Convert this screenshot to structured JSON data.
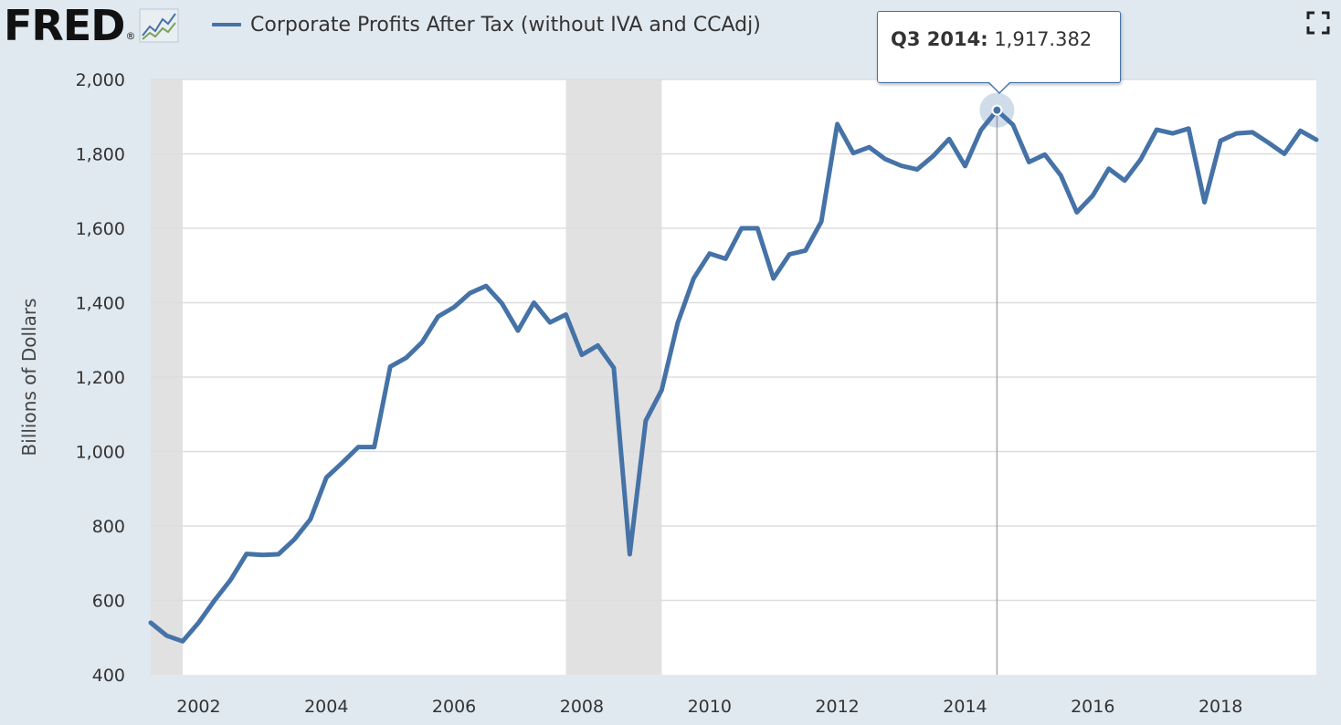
{
  "header": {
    "logo_text": "FRED",
    "logo_reg": "®",
    "logo_icon": "line-chart-icon",
    "fullscreen_icon": "fullscreen-icon"
  },
  "colors": {
    "series": "#4572a7",
    "recession": "#e1e1e1",
    "background": "#e1e9f0",
    "plot_background": "#ffffff",
    "grid": "#dddddd"
  },
  "tooltip": {
    "period": "Q3 2014:",
    "value": "1,917.382",
    "x": 2014.5,
    "y": 1917.382
  },
  "chart_data": {
    "type": "line",
    "title": "",
    "xlabel": "",
    "ylabel": "Billions of Dollars",
    "xlim": [
      2001.25,
      2019.5
    ],
    "ylim": [
      400,
      2000
    ],
    "grid": true,
    "legend": "top-left",
    "yticks": [
      400,
      600,
      800,
      1000,
      1200,
      1400,
      1600,
      1800,
      2000
    ],
    "ytick_labels": [
      "400",
      "600",
      "800",
      "1,000",
      "1,200",
      "1,400",
      "1,600",
      "1,800",
      "2,000"
    ],
    "xticks": [
      2002,
      2004,
      2006,
      2008,
      2010,
      2012,
      2014,
      2016,
      2018
    ],
    "xtick_labels": [
      "2002",
      "2004",
      "2006",
      "2008",
      "2010",
      "2012",
      "2014",
      "2016",
      "2018"
    ],
    "recessions": [
      [
        2001.25,
        2001.75
      ],
      [
        2007.75,
        2009.25
      ]
    ],
    "series": [
      {
        "name": "Corporate Profits After Tax (without IVA and CCAdj)",
        "x": [
          2001.25,
          2001.5,
          2001.75,
          2002.0,
          2002.25,
          2002.5,
          2002.75,
          2003.0,
          2003.25,
          2003.5,
          2003.75,
          2004.0,
          2004.25,
          2004.5,
          2004.75,
          2005.0,
          2005.25,
          2005.5,
          2005.75,
          2006.0,
          2006.25,
          2006.5,
          2006.75,
          2007.0,
          2007.25,
          2007.5,
          2007.75,
          2008.0,
          2008.25,
          2008.5,
          2008.75,
          2009.0,
          2009.25,
          2009.5,
          2009.75,
          2010.0,
          2010.25,
          2010.5,
          2010.75,
          2011.0,
          2011.25,
          2011.5,
          2011.75,
          2012.0,
          2012.25,
          2012.5,
          2012.75,
          2013.0,
          2013.25,
          2013.5,
          2013.75,
          2014.0,
          2014.25,
          2014.5,
          2014.75,
          2015.0,
          2015.25,
          2015.5,
          2015.75,
          2016.0,
          2016.25,
          2016.5,
          2016.75,
          2017.0,
          2017.25,
          2017.5,
          2017.75,
          2018.0,
          2018.25,
          2018.5,
          2018.75,
          2019.0,
          2019.25,
          2019.5
        ],
        "values": [
          540,
          505,
          490,
          540,
          600,
          655,
          725,
          722,
          724,
          764,
          818,
          930,
          970,
          1012,
          1012,
          1228,
          1252,
          1294,
          1363,
          1388,
          1426,
          1445,
          1398,
          1325,
          1400,
          1347,
          1368,
          1260,
          1285,
          1225,
          724,
          1083,
          1165,
          1345,
          1465,
          1532,
          1518,
          1600,
          1600,
          1465,
          1530,
          1540,
          1618,
          1880,
          1802,
          1818,
          1786,
          1768,
          1758,
          1794,
          1840,
          1767,
          1864,
          1917,
          1878,
          1778,
          1798,
          1742,
          1643,
          1688,
          1760,
          1728,
          1785,
          1865,
          1855,
          1868,
          1670,
          1835,
          1855,
          1858,
          1830,
          1800,
          1862,
          1838
        ]
      }
    ]
  }
}
